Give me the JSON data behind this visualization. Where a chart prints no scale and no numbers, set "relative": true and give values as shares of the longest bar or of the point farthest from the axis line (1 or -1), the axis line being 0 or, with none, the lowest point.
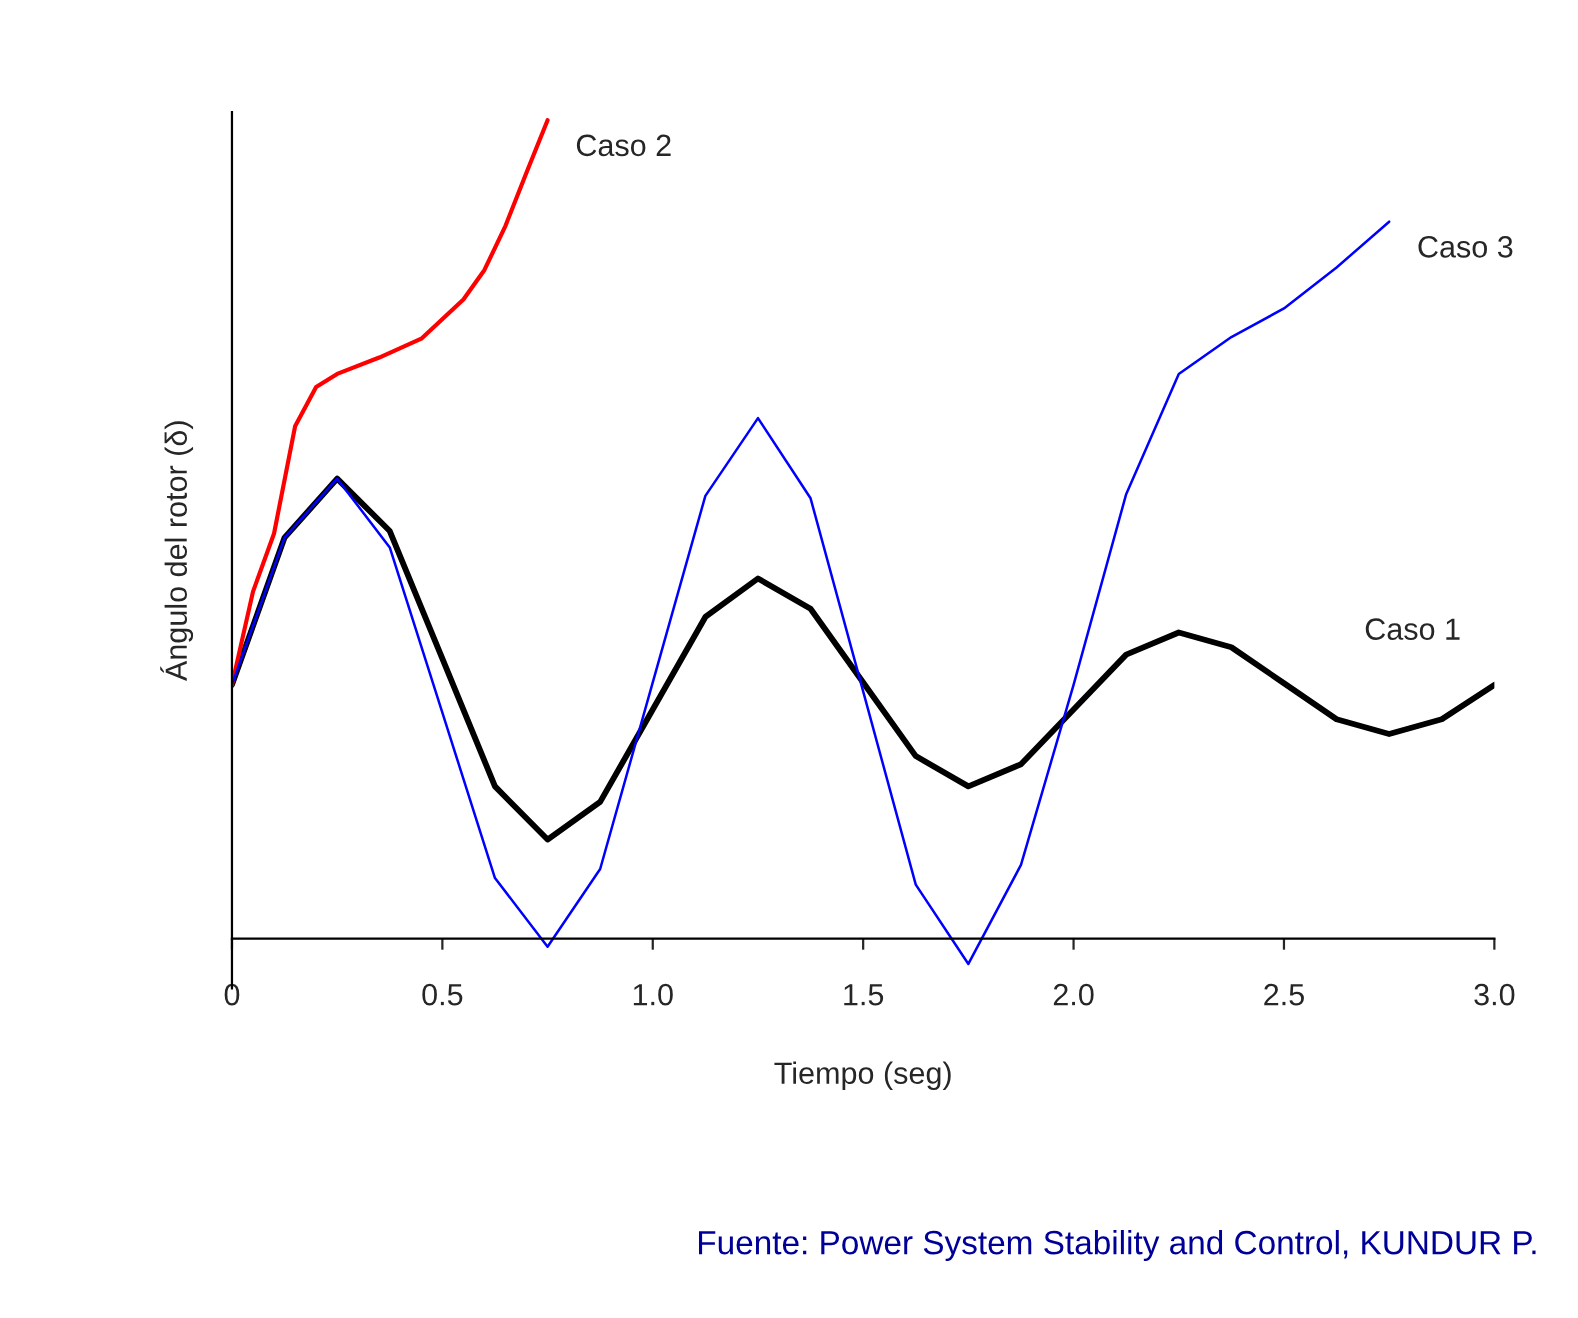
{
  "chart_data": {
    "type": "line",
    "relative": true,
    "xlabel": "Tiempo (seg)",
    "ylabel": "Ángulo del rotor (δ)",
    "xlim": [
      0,
      3.0
    ],
    "xticks": [
      {
        "value": 0,
        "label": "0"
      },
      {
        "value": 0.5,
        "label": "0.5"
      },
      {
        "value": 1.0,
        "label": "1.0"
      },
      {
        "value": 1.5,
        "label": "1.5"
      },
      {
        "value": 2.0,
        "label": "2.0"
      },
      {
        "value": 2.5,
        "label": "2.5"
      },
      {
        "value": 3.0,
        "label": "3.0"
      }
    ],
    "tick_labels": "x",
    "grid": false,
    "legend": false,
    "marker": "none",
    "line_style": "solid",
    "annotations": [
      "Fuente: Power System Stability and Control, KUNDUR P."
    ],
    "series": [
      {
        "name": "Caso 1",
        "color": "#000000",
        "x": [
          0,
          0.125,
          0.25,
          0.375,
          0.5,
          0.625,
          0.75,
          0.875,
          1.0,
          1.125,
          1.25,
          1.375,
          1.5,
          1.625,
          1.75,
          1.875,
          2.0,
          2.125,
          2.25,
          2.375,
          2.5,
          2.625,
          2.75,
          2.875,
          3.0
        ],
        "values": [
          0.31,
          0.49,
          0.562,
          0.498,
          0.342,
          0.186,
          0.121,
          0.167,
          0.28,
          0.393,
          0.44,
          0.403,
          0.313,
          0.223,
          0.186,
          0.213,
          0.28,
          0.347,
          0.374,
          0.356,
          0.312,
          0.268,
          0.25,
          0.268,
          0.31
        ]
      },
      {
        "name": "Caso 2",
        "color": "#ff0000",
        "x": [
          0,
          0.05,
          0.1,
          0.15,
          0.2,
          0.25,
          0.35,
          0.45,
          0.55,
          0.6,
          0.65,
          0.7,
          0.75
        ],
        "values": [
          0.31,
          0.424,
          0.495,
          0.626,
          0.674,
          0.69,
          0.71,
          0.733,
          0.781,
          0.817,
          0.871,
          0.936,
          1.0
        ]
      },
      {
        "name": "Caso 3",
        "color": "#0000ff",
        "x": [
          0,
          0.125,
          0.25,
          0.375,
          0.5,
          0.625,
          0.75,
          0.875,
          1.0,
          1.125,
          1.25,
          1.375,
          1.5,
          1.625,
          1.75,
          1.875,
          2.0,
          2.125,
          2.25,
          2.375,
          2.5,
          2.625,
          2.75
        ],
        "values": [
          0.31,
          0.49,
          0.562,
          0.478,
          0.276,
          0.074,
          -0.01,
          0.085,
          0.313,
          0.541,
          0.636,
          0.538,
          0.302,
          0.066,
          -0.031,
          0.09,
          0.31,
          0.543,
          0.69,
          0.735,
          0.77,
          0.82,
          0.876
        ]
      }
    ]
  }
}
